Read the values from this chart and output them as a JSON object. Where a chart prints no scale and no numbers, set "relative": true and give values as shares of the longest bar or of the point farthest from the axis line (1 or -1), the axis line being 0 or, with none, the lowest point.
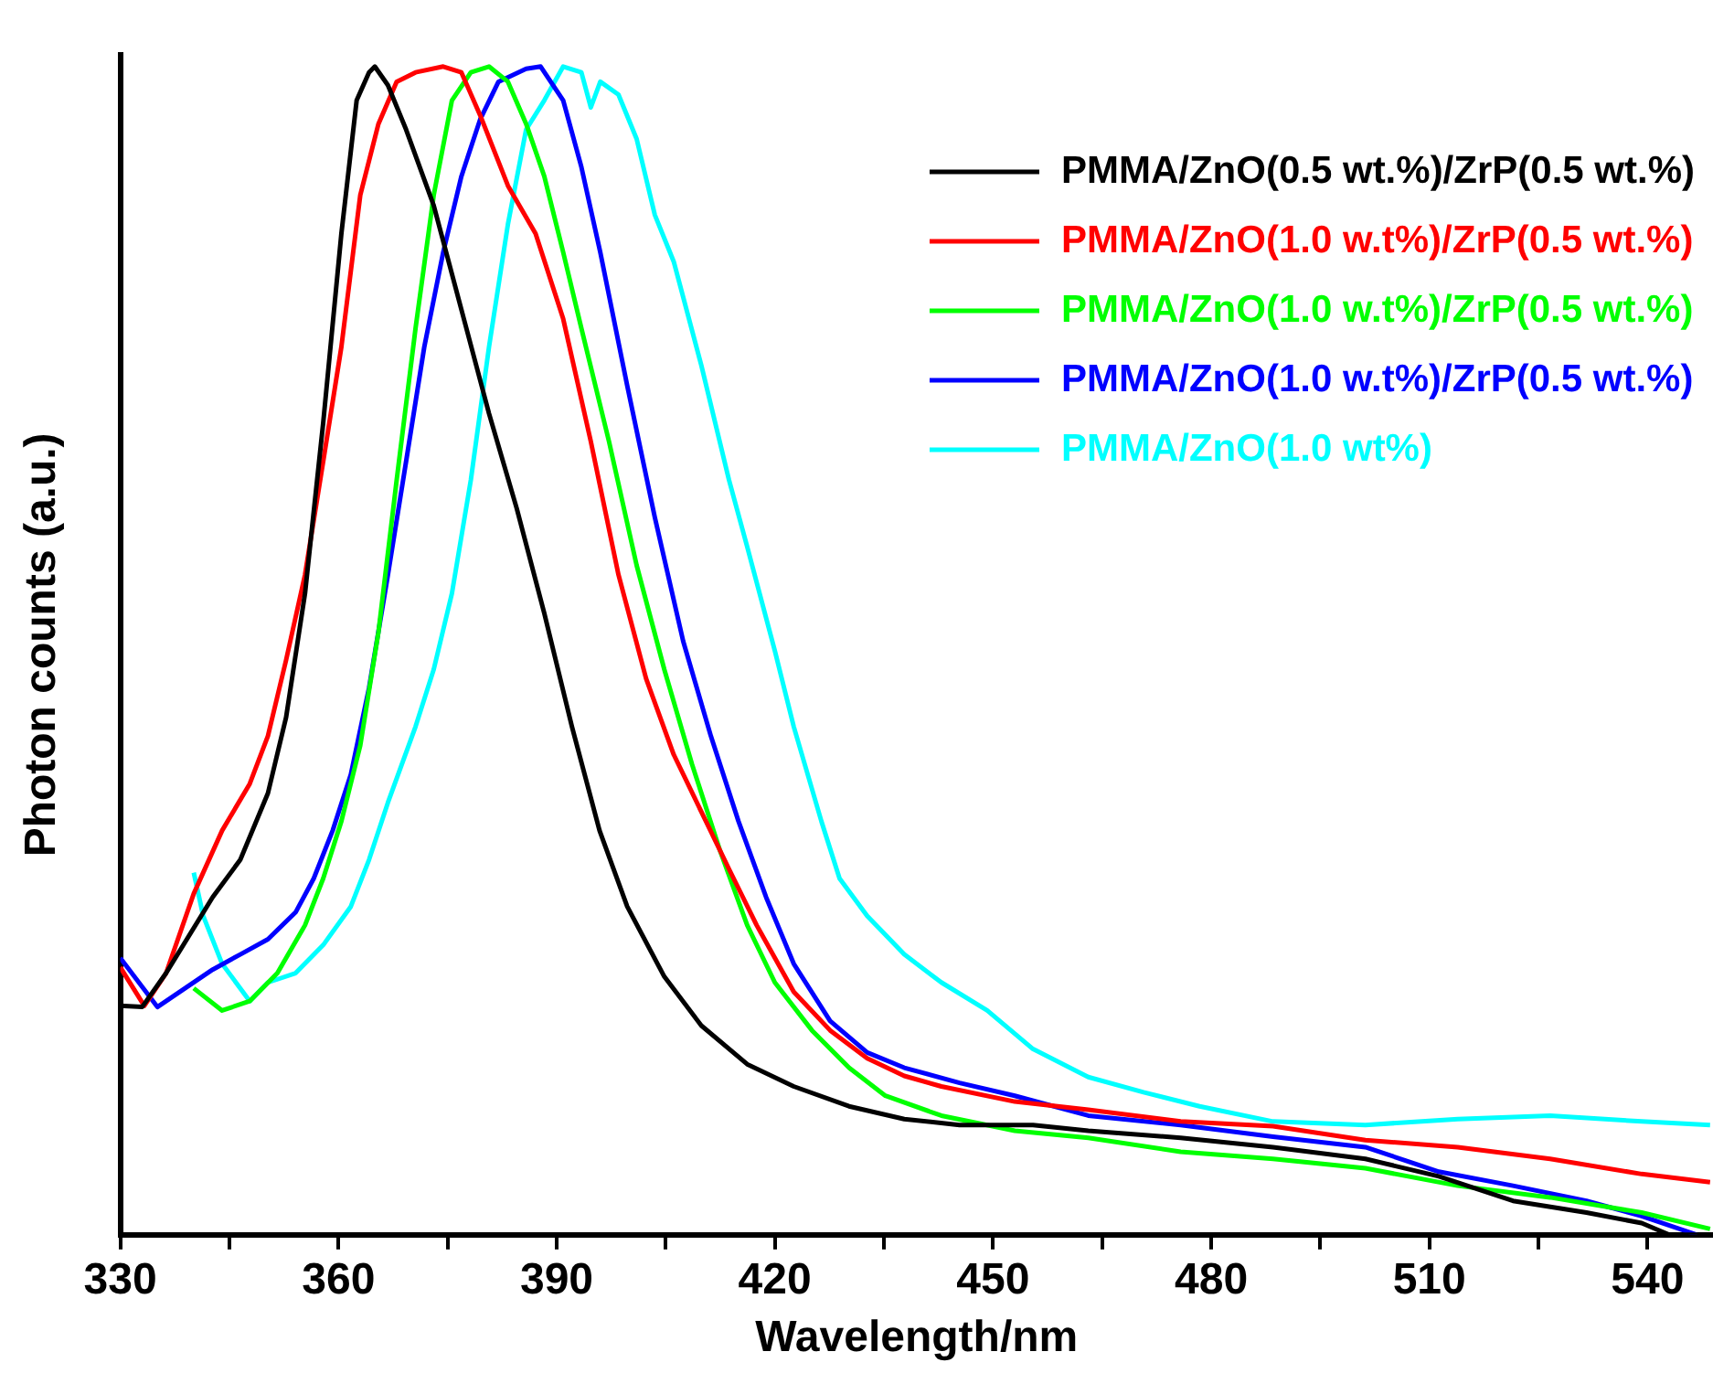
{
  "chart_data": {
    "type": "line",
    "xlabel": "Wavelength/nm",
    "ylabel": "Photon counts (a.u.)",
    "relative": true,
    "xlim": [
      330,
      549
    ],
    "xticks": [
      330,
      {
        "value": 345,
        "label": null
      },
      360,
      {
        "value": 375,
        "label": null
      },
      390,
      {
        "value": 405,
        "label": null
      },
      420,
      {
        "value": 435,
        "label": null
      },
      450,
      {
        "value": 465,
        "label": null
      },
      480,
      {
        "value": 495,
        "label": null
      },
      510,
      {
        "value": 525,
        "label": null
      },
      540
    ],
    "legend": "top right",
    "grid": false,
    "marker": "none",
    "line_style": "solid",
    "series": [
      {
        "name": "PMMA/ZnO(0.5 wt.%)/ZrP(0.5 wt.%)",
        "color": "#000000",
        "x": [
          330,
          333,
          336.3,
          342.7,
          346.5,
          350.3,
          352.8,
          355.4,
          357.9,
          360.4,
          362.5,
          364.2,
          365,
          366.8,
          369.3,
          373.1,
          376.9,
          380.7,
          384.5,
          388.3,
          392.1,
          395.9,
          399.7,
          404.8,
          409.9,
          416.2,
          422.6,
          430.2,
          437.8,
          445.4,
          455.5,
          463.1,
          475.8,
          488.5,
          501.2,
          511.3,
          521.5,
          531.6,
          539.2,
          543,
          548.6
        ],
        "values": [
          0.196,
          0.195,
          0.224,
          0.289,
          0.321,
          0.378,
          0.443,
          0.549,
          0.695,
          0.857,
          0.971,
          0.995,
          1.0,
          0.984,
          0.946,
          0.881,
          0.792,
          0.703,
          0.622,
          0.532,
          0.435,
          0.346,
          0.281,
          0.221,
          0.179,
          0.146,
          0.127,
          0.11,
          0.099,
          0.094,
          0.094,
          0.089,
          0.083,
          0.075,
          0.065,
          0.05,
          0.029,
          0.019,
          0.01,
          0,
          0
        ]
      },
      {
        "name": "PMMA/ZnO(1.0 w.t%)/ZrP(0.5 wt.%)",
        "color": "#ff0000",
        "x": [
          330,
          333.3,
          336.3,
          340.1,
          344,
          347.8,
          350.3,
          352.8,
          355.4,
          357.9,
          360.4,
          363,
          365.5,
          368,
          370.6,
          374.4,
          376.9,
          379.5,
          383.3,
          387.1,
          390.9,
          394.7,
          398.5,
          402.3,
          406.1,
          409.9,
          413.7,
          417.5,
          422.6,
          427.6,
          432.7,
          437.8,
          442.9,
          453,
          463.1,
          475.8,
          488.5,
          501.2,
          513.9,
          526.6,
          539.2,
          548.6
        ],
        "values": [
          0.229,
          0.196,
          0.224,
          0.292,
          0.346,
          0.386,
          0.427,
          0.492,
          0.565,
          0.662,
          0.76,
          0.89,
          0.951,
          0.987,
          0.995,
          1.0,
          0.995,
          0.958,
          0.898,
          0.857,
          0.784,
          0.679,
          0.565,
          0.476,
          0.411,
          0.362,
          0.313,
          0.265,
          0.208,
          0.175,
          0.151,
          0.136,
          0.127,
          0.114,
          0.107,
          0.097,
          0.093,
          0.081,
          0.075,
          0.065,
          0.052,
          0.045
        ]
      },
      {
        "name": "PMMA/ZnO(1.0 w.t%)/ZrP(0.5 wt.%)",
        "color": "#00ff00",
        "x": [
          340.1,
          344,
          347.8,
          351.6,
          355.4,
          357.9,
          360.4,
          363,
          365.5,
          368,
          370.6,
          373.1,
          375.6,
          378.2,
          380.7,
          383.3,
          385.8,
          388.3,
          390.9,
          393.4,
          397.2,
          401,
          404.8,
          408.6,
          412.4,
          416.2,
          420,
          425.1,
          430.2,
          435.2,
          442.9,
          453,
          463.1,
          475.8,
          488.5,
          501.2,
          513.9,
          526.6,
          539.2,
          548.6
        ],
        "values": [
          0.211,
          0.192,
          0.2,
          0.224,
          0.265,
          0.305,
          0.354,
          0.419,
          0.516,
          0.646,
          0.776,
          0.89,
          0.971,
          0.995,
          1.0,
          0.987,
          0.951,
          0.906,
          0.841,
          0.776,
          0.679,
          0.573,
          0.484,
          0.403,
          0.33,
          0.265,
          0.216,
          0.175,
          0.143,
          0.119,
          0.102,
          0.089,
          0.083,
          0.071,
          0.065,
          0.057,
          0.042,
          0.032,
          0.019,
          0.005
        ]
      },
      {
        "name": "PMMA/ZnO(1.0 w.t%)/ZrP(0.5 wt.%)",
        "color": "#0000ff",
        "x": [
          330,
          335.1,
          338.9,
          342.7,
          346.5,
          350.3,
          354.1,
          356.6,
          359.2,
          361.7,
          364.2,
          366.8,
          369.3,
          371.8,
          374.4,
          376.9,
          379.5,
          382,
          385.8,
          387.8,
          390.9,
          393.4,
          396,
          399.7,
          403.5,
          407.4,
          411.2,
          415,
          418.8,
          422.6,
          427.6,
          432.7,
          437.8,
          445.4,
          453,
          463.1,
          475.8,
          488.5,
          501.2,
          511.3,
          521.5,
          531.6,
          539.2,
          546.8
        ],
        "values": [
          0.237,
          0.195,
          0.211,
          0.227,
          0.24,
          0.253,
          0.276,
          0.305,
          0.346,
          0.394,
          0.468,
          0.565,
          0.662,
          0.76,
          0.841,
          0.906,
          0.955,
          0.987,
          0.998,
          1.0,
          0.971,
          0.914,
          0.841,
          0.727,
          0.614,
          0.508,
          0.427,
          0.354,
          0.289,
          0.232,
          0.183,
          0.156,
          0.143,
          0.13,
          0.119,
          0.102,
          0.094,
          0.084,
          0.075,
          0.054,
          0.042,
          0.029,
          0.016,
          0
        ]
      },
      {
        "name": "PMMA/ZnO(1.0 wt%)",
        "color": "#00ffff",
        "x": [
          340.1,
          341.4,
          344,
          347.8,
          350.3,
          354.1,
          357.9,
          361.7,
          364.2,
          366.8,
          370.6,
          373.1,
          375.6,
          378.2,
          380.7,
          383.3,
          385.8,
          388.3,
          390.9,
          393.4,
          394.7,
          396,
          398.5,
          401,
          403.5,
          406.1,
          409.9,
          413.7,
          416.2,
          420,
          422.6,
          426.4,
          428.9,
          432.7,
          437.8,
          442.9,
          449.2,
          455.5,
          463.1,
          470.7,
          478.4,
          488.5,
          501.2,
          513.9,
          526.6,
          539.2,
          548.6
        ],
        "values": [
          0.31,
          0.273,
          0.232,
          0.2,
          0.216,
          0.224,
          0.248,
          0.281,
          0.321,
          0.37,
          0.435,
          0.484,
          0.549,
          0.646,
          0.76,
          0.865,
          0.946,
          0.971,
          1.0,
          0.995,
          0.965,
          0.987,
          0.976,
          0.938,
          0.873,
          0.833,
          0.744,
          0.646,
          0.589,
          0.5,
          0.435,
          0.354,
          0.305,
          0.273,
          0.24,
          0.216,
          0.192,
          0.159,
          0.135,
          0.122,
          0.11,
          0.097,
          0.094,
          0.099,
          0.102,
          0.097,
          0.094
        ]
      }
    ]
  }
}
